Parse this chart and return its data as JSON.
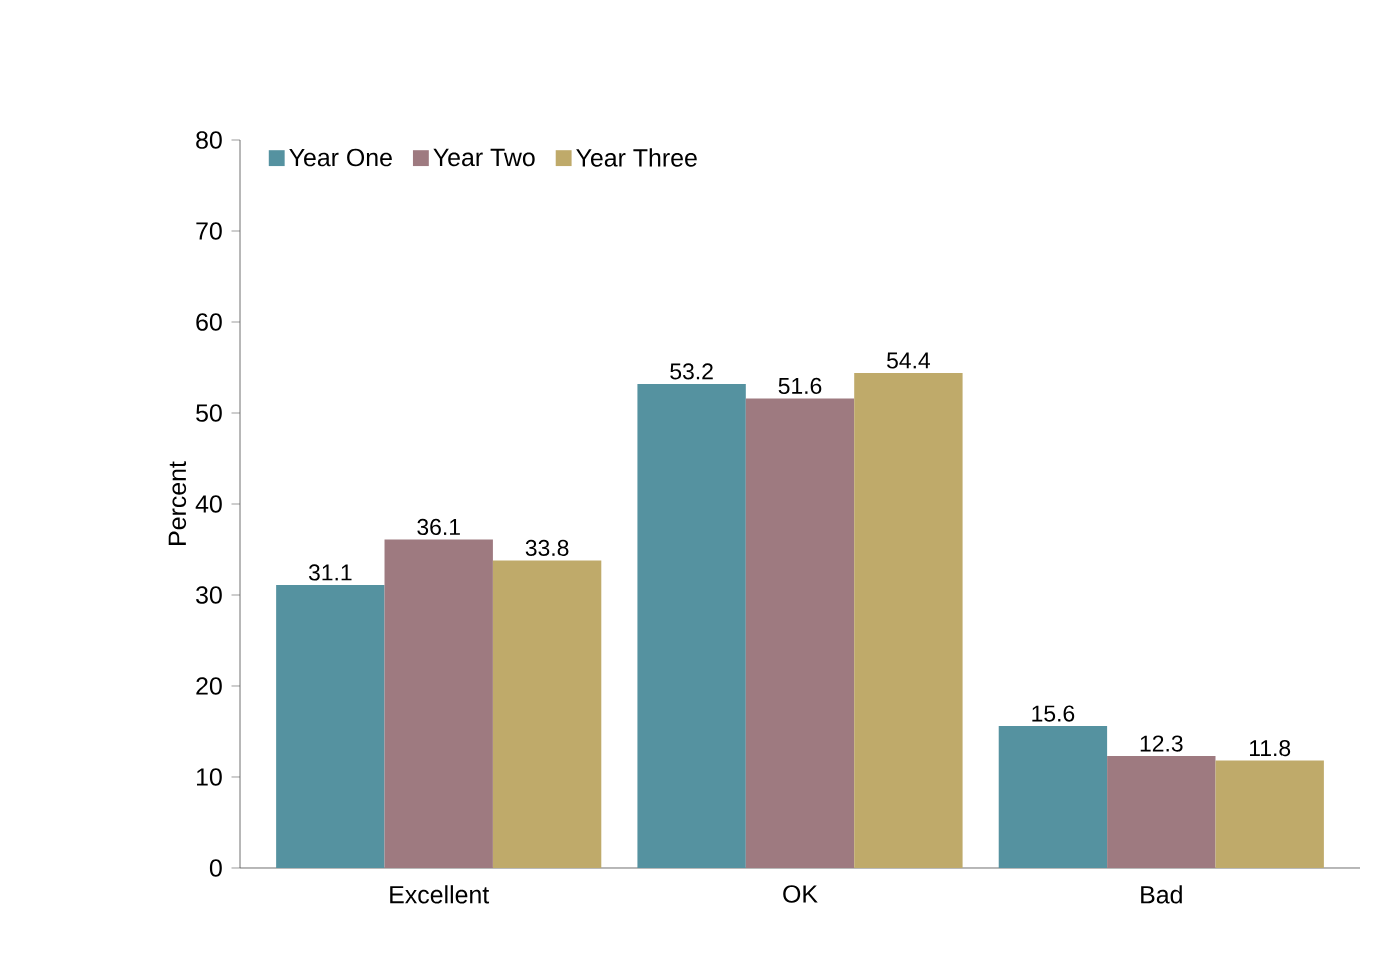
{
  "chart_data": {
    "type": "bar",
    "ylabel": "Percent",
    "categories": [
      "Excellent",
      "OK",
      "Bad"
    ],
    "series": [
      {
        "name": "Year One",
        "color": "#5592a0",
        "values": [
          31.1,
          53.2,
          15.6
        ]
      },
      {
        "name": "Year Two",
        "color": "#9e7a80",
        "values": [
          36.1,
          51.6,
          12.3
        ]
      },
      {
        "name": "Year Three",
        "color": "#bfaa6a",
        "values": [
          33.8,
          54.4,
          11.8
        ]
      }
    ],
    "ylim": [
      0,
      80
    ],
    "yticks": [
      0,
      10,
      20,
      30,
      40,
      50,
      60,
      70,
      80
    ],
    "grid": false,
    "legend": "top left",
    "data_labels": true
  }
}
